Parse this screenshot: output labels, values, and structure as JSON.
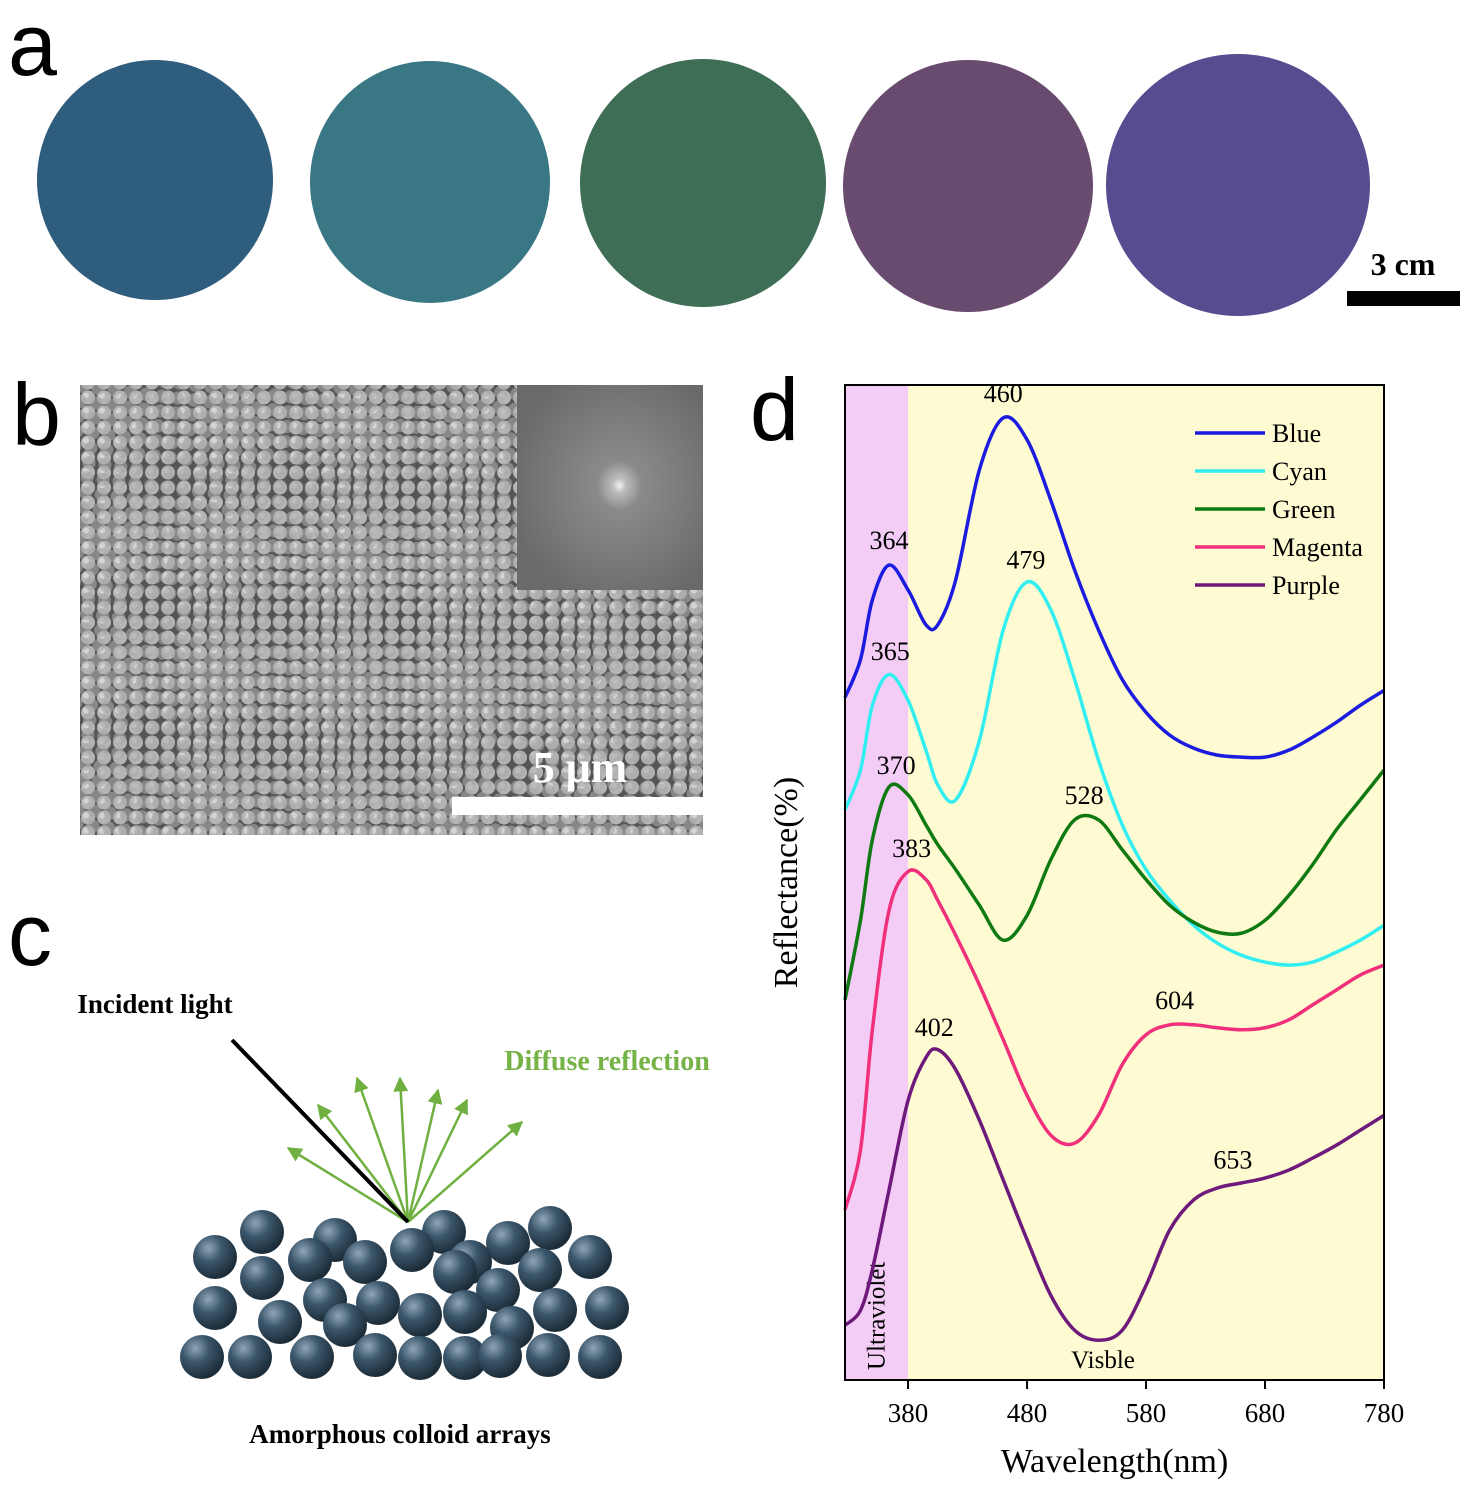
{
  "panel_labels": [
    "a",
    "b",
    "c",
    "d"
  ],
  "photos": {
    "scale_bar": "3 cm"
  },
  "sem": {
    "scale_bar": "5 μm"
  },
  "schematic": {
    "incident": "Incident light",
    "reflection": "Diffuse reflection",
    "caption": "Amorphous colloid arrays"
  },
  "chart_data": {
    "type": "line",
    "x_label": "Wavelength(nm)",
    "y_label": "Reflectance(%)",
    "xlim": [
      327,
      780
    ],
    "xticks": [
      380,
      480,
      580,
      680,
      780
    ],
    "ylim": [
      0,
      100
    ],
    "legend": "upper right",
    "regions": [
      {
        "label": "Ultraviolet",
        "from": 327,
        "to": 380,
        "color": "#f3cdf6"
      },
      {
        "label": "Visble",
        "from": 380,
        "to": 780,
        "color": "#fefbd2"
      }
    ],
    "x": [
      327,
      340,
      350,
      364,
      380,
      395,
      405,
      420,
      440,
      460,
      480,
      500,
      520,
      540,
      560,
      580,
      600,
      620,
      640,
      660,
      680,
      700,
      720,
      740,
      760,
      780
    ],
    "series": [
      {
        "name": "Blue",
        "color": "#1c1ce0",
        "peak_labels": [
          364,
          460
        ],
        "values": [
          68.6,
          72.4,
          78.4,
          81.9,
          79.4,
          75.9,
          75.9,
          80.4,
          91.5,
          96.7,
          94.5,
          88.4,
          81.4,
          75.4,
          70.4,
          67.1,
          64.8,
          63.5,
          62.8,
          62.6,
          62.6,
          63.3,
          64.6,
          66.1,
          67.8,
          69.3
        ]
      },
      {
        "name": "Cyan",
        "color": "#33eef0",
        "peak_labels": [
          365,
          479
        ],
        "values": [
          57.3,
          61.3,
          67.8,
          70.9,
          68.3,
          63.3,
          59.8,
          58.3,
          64.3,
          75.4,
          80.2,
          77.4,
          70.4,
          62.3,
          55.8,
          51.3,
          48.2,
          45.7,
          43.9,
          42.7,
          42.0,
          41.7,
          42.0,
          43.0,
          44.2,
          45.7
        ]
      },
      {
        "name": "Green",
        "color": "#0f7a12",
        "peak_labels": [
          370,
          528
        ],
        "values": [
          38.2,
          46.2,
          54.3,
          59.6,
          58.8,
          55.8,
          53.8,
          51.3,
          47.7,
          44.2,
          46.7,
          52.3,
          56.3,
          56.3,
          53.3,
          50.3,
          47.7,
          46.0,
          45.0,
          44.9,
          46.2,
          48.7,
          51.8,
          55.3,
          58.3,
          61.3
        ]
      },
      {
        "name": "Magenta",
        "color": "#f0307a",
        "peak_labels": [
          383,
          604
        ],
        "values": [
          17.1,
          23.1,
          35.2,
          47.2,
          51.1,
          50.3,
          48.2,
          44.7,
          39.7,
          34.2,
          28.6,
          24.6,
          23.8,
          26.6,
          31.7,
          34.7,
          35.7,
          35.7,
          35.4,
          35.2,
          35.4,
          36.2,
          37.7,
          39.2,
          40.7,
          41.7
        ]
      },
      {
        "name": "Purple",
        "color": "#6e1a7c",
        "peak_labels": [
          402,
          653
        ],
        "values": [
          5.5,
          7.0,
          11.1,
          19.1,
          28.1,
          32.4,
          33.2,
          31.2,
          26.1,
          20.1,
          14.1,
          8.5,
          5.0,
          4.0,
          5.0,
          9.5,
          15.1,
          18.1,
          19.3,
          19.8,
          20.3,
          21.1,
          22.3,
          23.6,
          25.1,
          26.6
        ]
      }
    ]
  }
}
